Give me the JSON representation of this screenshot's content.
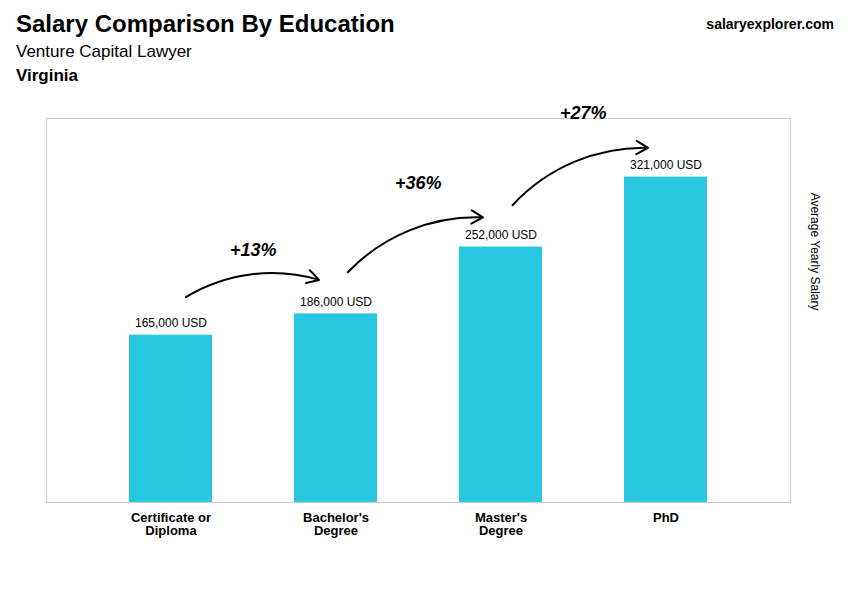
{
  "chart_data": {
    "type": "bar",
    "title": "Salary Comparison By Education",
    "subtitle": [
      "Venture Capital Lawyer",
      "Virginia"
    ],
    "source": [
      "salary",
      "explorer",
      ".com"
    ],
    "ylabel": "Average Yearly Salary",
    "categories": [
      "Certificate or\nDiploma",
      "Bachelor's\nDegree",
      "Master's\nDegree",
      "PhD"
    ],
    "values": [
      165000,
      186000,
      252000,
      321000
    ],
    "value_labels": [
      "165,000 USD",
      "186,000 USD",
      "252,000 USD",
      "321,000 USD"
    ],
    "data_labels": true,
    "annotations": [
      "+13%",
      "+36%",
      "+27%"
    ],
    "color": "#29c6e0",
    "ylim": [
      0,
      378780
    ],
    "tick_labels": "x",
    "grid": false
  }
}
